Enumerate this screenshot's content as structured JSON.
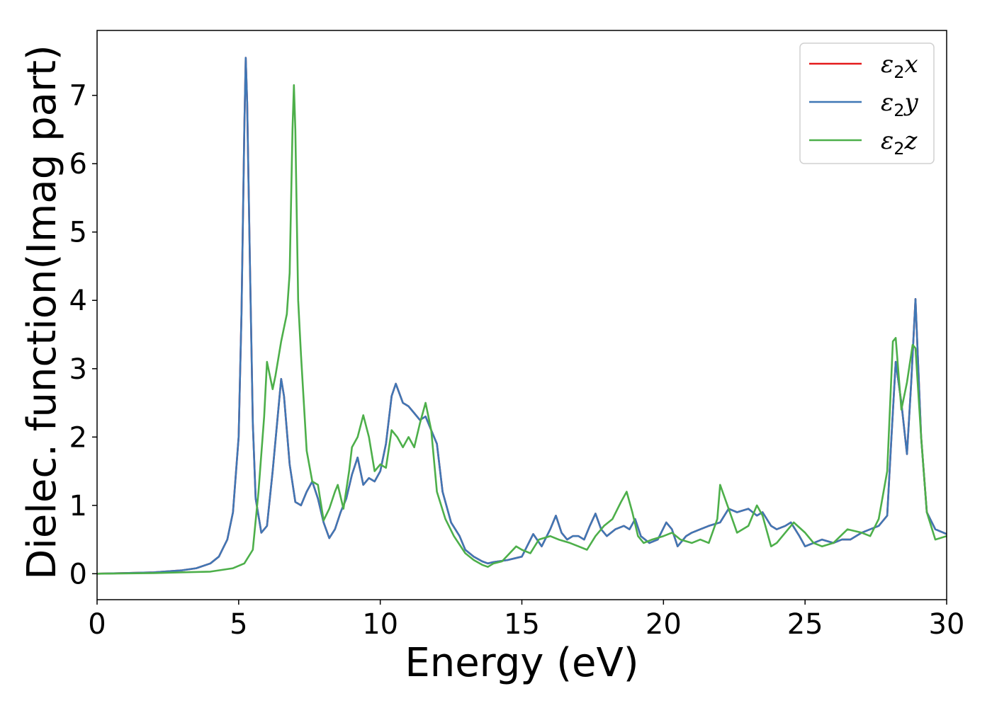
{
  "chart_data": {
    "type": "line",
    "title": "",
    "xlabel": "Energy (eV)",
    "ylabel": "Dielec. function(Imag part)",
    "xlim": [
      0,
      30
    ],
    "ylim": [
      -0.38,
      7.95
    ],
    "xticks": [
      0,
      5,
      10,
      15,
      20,
      25,
      30
    ],
    "yticks": [
      0,
      1,
      2,
      3,
      4,
      5,
      6,
      7
    ],
    "grid": false,
    "legend_position": "top-right",
    "series": [
      {
        "name": "ε2x",
        "symbol": "ε",
        "sub": "2",
        "axis": "x",
        "color": "#e41a1c",
        "x": [
          0,
          1,
          2,
          3,
          3.5,
          4,
          4.3,
          4.6,
          4.8,
          5.0,
          5.1,
          5.2,
          5.25,
          5.3,
          5.4,
          5.5,
          5.6,
          5.8,
          6.0,
          6.2,
          6.4,
          6.5,
          6.6,
          6.8,
          7.0,
          7.2,
          7.4,
          7.6,
          7.8,
          8.0,
          8.2,
          8.4,
          8.6,
          8.8,
          9.0,
          9.2,
          9.4,
          9.6,
          9.8,
          10.0,
          10.2,
          10.4,
          10.55,
          10.8,
          11.0,
          11.2,
          11.4,
          11.6,
          11.8,
          12.0,
          12.2,
          12.5,
          12.8,
          13.0,
          13.3,
          13.6,
          13.8,
          14.0,
          14.5,
          15.0,
          15.4,
          15.7,
          16.0,
          16.2,
          16.4,
          16.6,
          16.8,
          17.0,
          17.2,
          17.4,
          17.6,
          17.8,
          18.0,
          18.3,
          18.6,
          18.8,
          19.0,
          19.2,
          19.5,
          19.8,
          20.1,
          20.3,
          20.5,
          20.8,
          21.0,
          21.3,
          21.6,
          22.0,
          22.3,
          22.6,
          23.0,
          23.3,
          23.5,
          23.8,
          24.0,
          24.3,
          24.5,
          24.8,
          25.0,
          25.3,
          25.6,
          26.0,
          26.3,
          26.6,
          27.0,
          27.3,
          27.6,
          27.9,
          28.05,
          28.2,
          28.4,
          28.6,
          28.75,
          28.9,
          29.1,
          29.3,
          29.6,
          30.0
        ],
        "y": [
          0,
          0.01,
          0.02,
          0.05,
          0.08,
          0.15,
          0.25,
          0.5,
          0.9,
          2.0,
          3.8,
          6.5,
          7.55,
          6.9,
          4.5,
          2.2,
          1.1,
          0.6,
          0.7,
          1.5,
          2.4,
          2.85,
          2.6,
          1.6,
          1.05,
          1.0,
          1.2,
          1.35,
          1.1,
          0.75,
          0.52,
          0.65,
          0.9,
          1.1,
          1.45,
          1.7,
          1.3,
          1.4,
          1.35,
          1.5,
          1.9,
          2.6,
          2.78,
          2.5,
          2.45,
          2.35,
          2.25,
          2.3,
          2.1,
          1.9,
          1.2,
          0.75,
          0.55,
          0.35,
          0.25,
          0.18,
          0.15,
          0.17,
          0.2,
          0.25,
          0.58,
          0.4,
          0.65,
          0.85,
          0.6,
          0.5,
          0.55,
          0.55,
          0.5,
          0.7,
          0.88,
          0.65,
          0.55,
          0.65,
          0.7,
          0.65,
          0.8,
          0.55,
          0.45,
          0.5,
          0.75,
          0.65,
          0.4,
          0.55,
          0.6,
          0.65,
          0.7,
          0.75,
          0.95,
          0.9,
          0.95,
          0.85,
          0.9,
          0.7,
          0.65,
          0.7,
          0.75,
          0.55,
          0.4,
          0.45,
          0.5,
          0.45,
          0.5,
          0.5,
          0.6,
          0.65,
          0.7,
          0.85,
          2.0,
          3.1,
          2.5,
          1.75,
          2.8,
          4.02,
          2.0,
          0.9,
          0.65,
          0.58
        ]
      },
      {
        "name": "ε2y",
        "symbol": "ε",
        "sub": "2",
        "axis": "y",
        "color": "#3f77b5",
        "x": [
          0,
          1,
          2,
          3,
          3.5,
          4,
          4.3,
          4.6,
          4.8,
          5.0,
          5.1,
          5.2,
          5.25,
          5.3,
          5.4,
          5.5,
          5.6,
          5.8,
          6.0,
          6.2,
          6.4,
          6.5,
          6.6,
          6.8,
          7.0,
          7.2,
          7.4,
          7.6,
          7.8,
          8.0,
          8.2,
          8.4,
          8.6,
          8.8,
          9.0,
          9.2,
          9.4,
          9.6,
          9.8,
          10.0,
          10.2,
          10.4,
          10.55,
          10.8,
          11.0,
          11.2,
          11.4,
          11.6,
          11.8,
          12.0,
          12.2,
          12.5,
          12.8,
          13.0,
          13.3,
          13.6,
          13.8,
          14.0,
          14.5,
          15.0,
          15.4,
          15.7,
          16.0,
          16.2,
          16.4,
          16.6,
          16.8,
          17.0,
          17.2,
          17.4,
          17.6,
          17.8,
          18.0,
          18.3,
          18.6,
          18.8,
          19.0,
          19.2,
          19.5,
          19.8,
          20.1,
          20.3,
          20.5,
          20.8,
          21.0,
          21.3,
          21.6,
          22.0,
          22.3,
          22.6,
          23.0,
          23.3,
          23.5,
          23.8,
          24.0,
          24.3,
          24.5,
          24.8,
          25.0,
          25.3,
          25.6,
          26.0,
          26.3,
          26.6,
          27.0,
          27.3,
          27.6,
          27.9,
          28.05,
          28.2,
          28.4,
          28.6,
          28.75,
          28.9,
          29.1,
          29.3,
          29.6,
          30.0
        ],
        "y": [
          0,
          0.01,
          0.02,
          0.05,
          0.08,
          0.15,
          0.25,
          0.5,
          0.9,
          2.0,
          3.8,
          6.5,
          7.55,
          6.9,
          4.5,
          2.2,
          1.1,
          0.6,
          0.7,
          1.5,
          2.4,
          2.85,
          2.6,
          1.6,
          1.05,
          1.0,
          1.2,
          1.35,
          1.1,
          0.75,
          0.52,
          0.65,
          0.9,
          1.1,
          1.45,
          1.7,
          1.3,
          1.4,
          1.35,
          1.5,
          1.9,
          2.6,
          2.78,
          2.5,
          2.45,
          2.35,
          2.25,
          2.3,
          2.1,
          1.9,
          1.2,
          0.75,
          0.55,
          0.35,
          0.25,
          0.18,
          0.15,
          0.17,
          0.2,
          0.25,
          0.58,
          0.4,
          0.65,
          0.85,
          0.6,
          0.5,
          0.55,
          0.55,
          0.5,
          0.7,
          0.88,
          0.65,
          0.55,
          0.65,
          0.7,
          0.65,
          0.8,
          0.55,
          0.45,
          0.5,
          0.75,
          0.65,
          0.4,
          0.55,
          0.6,
          0.65,
          0.7,
          0.75,
          0.95,
          0.9,
          0.95,
          0.85,
          0.9,
          0.7,
          0.65,
          0.7,
          0.75,
          0.55,
          0.4,
          0.45,
          0.5,
          0.45,
          0.5,
          0.5,
          0.6,
          0.65,
          0.7,
          0.85,
          2.0,
          3.1,
          2.5,
          1.75,
          2.8,
          4.02,
          2.0,
          0.9,
          0.65,
          0.58
        ]
      },
      {
        "name": "ε2z",
        "symbol": "ε",
        "sub": "2",
        "axis": "z",
        "color": "#4daf4a",
        "x": [
          0,
          2,
          4,
          4.8,
          5.2,
          5.5,
          5.7,
          5.9,
          6.0,
          6.1,
          6.2,
          6.3,
          6.5,
          6.6,
          6.7,
          6.8,
          6.9,
          6.95,
          7.0,
          7.1,
          7.2,
          7.4,
          7.6,
          7.8,
          8.0,
          8.2,
          8.4,
          8.5,
          8.7,
          8.9,
          9.0,
          9.2,
          9.4,
          9.6,
          9.8,
          10.0,
          10.2,
          10.4,
          10.6,
          10.8,
          11.0,
          11.2,
          11.4,
          11.6,
          11.8,
          12.0,
          12.3,
          12.6,
          13.0,
          13.3,
          13.6,
          13.8,
          14.0,
          14.3,
          14.8,
          15.0,
          15.3,
          15.6,
          16.0,
          16.3,
          16.7,
          17.0,
          17.3,
          17.6,
          17.9,
          18.2,
          18.5,
          18.7,
          18.9,
          19.1,
          19.3,
          19.6,
          20.0,
          20.3,
          20.6,
          21.0,
          21.3,
          21.6,
          21.9,
          22.0,
          22.3,
          22.6,
          23.0,
          23.3,
          23.5,
          23.8,
          24.0,
          24.3,
          24.6,
          25.0,
          25.3,
          25.6,
          26.0,
          26.5,
          27.0,
          27.3,
          27.6,
          27.9,
          28.1,
          28.2,
          28.4,
          28.6,
          28.8,
          28.9,
          29.1,
          29.3,
          29.6,
          30.0
        ],
        "y": [
          0,
          0.01,
          0.03,
          0.08,
          0.15,
          0.35,
          1.2,
          2.3,
          3.1,
          2.9,
          2.7,
          2.9,
          3.4,
          3.6,
          3.8,
          4.4,
          6.5,
          7.15,
          6.5,
          4.0,
          3.2,
          1.8,
          1.35,
          1.3,
          0.78,
          0.95,
          1.2,
          1.3,
          0.95,
          1.5,
          1.85,
          2.0,
          2.32,
          2.0,
          1.5,
          1.6,
          1.55,
          2.1,
          2.0,
          1.85,
          2.0,
          1.85,
          2.2,
          2.5,
          2.1,
          1.2,
          0.8,
          0.55,
          0.3,
          0.2,
          0.13,
          0.1,
          0.15,
          0.18,
          0.4,
          0.35,
          0.3,
          0.5,
          0.55,
          0.5,
          0.45,
          0.4,
          0.35,
          0.55,
          0.7,
          0.8,
          1.05,
          1.2,
          0.9,
          0.55,
          0.45,
          0.5,
          0.55,
          0.6,
          0.5,
          0.45,
          0.5,
          0.45,
          0.8,
          1.3,
          0.95,
          0.6,
          0.7,
          1.0,
          0.85,
          0.4,
          0.45,
          0.6,
          0.75,
          0.6,
          0.45,
          0.4,
          0.45,
          0.65,
          0.6,
          0.55,
          0.8,
          1.5,
          3.4,
          3.45,
          2.4,
          2.8,
          3.35,
          3.3,
          2.0,
          0.9,
          0.5,
          0.55
        ]
      }
    ]
  }
}
